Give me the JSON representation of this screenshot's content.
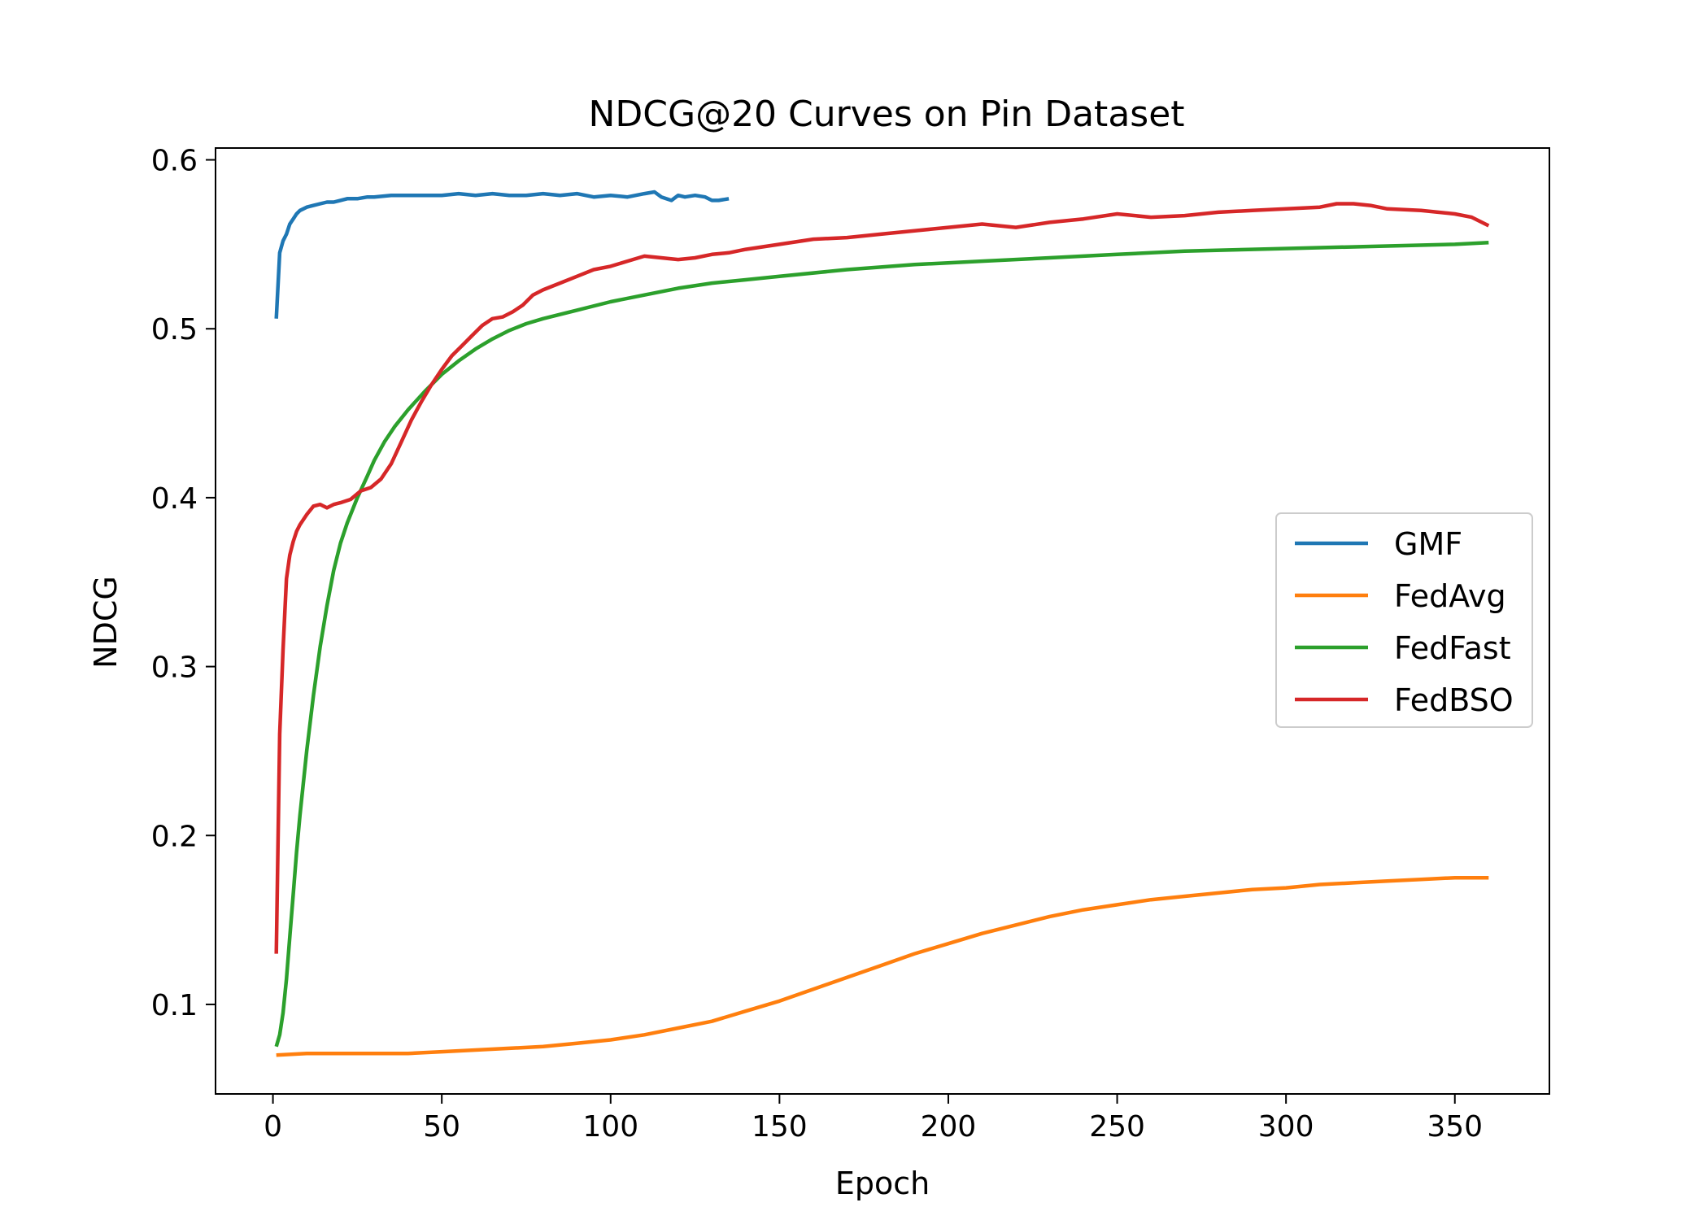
{
  "chart_data": {
    "type": "line",
    "title": "NDCG@20 Curves on Pin Dataset",
    "xlabel": "Epoch",
    "ylabel": "NDCG",
    "xlim": [
      -17,
      378
    ],
    "ylim": [
      0.047,
      0.607
    ],
    "xticks": [
      0,
      50,
      100,
      150,
      200,
      250,
      300,
      350
    ],
    "yticks": [
      0.1,
      0.2,
      0.3,
      0.4,
      0.5,
      0.6
    ],
    "grid": false,
    "legend_position": "center-right",
    "series": [
      {
        "name": "GMF",
        "color": "#1f77b4",
        "x": [
          1,
          2,
          3,
          4,
          5,
          6,
          7,
          8,
          9,
          10,
          12,
          14,
          16,
          18,
          20,
          22,
          25,
          28,
          30,
          35,
          40,
          45,
          50,
          55,
          60,
          65,
          70,
          75,
          80,
          85,
          90,
          95,
          100,
          105,
          110,
          113,
          115,
          118,
          120,
          122,
          125,
          128,
          130,
          132,
          135
        ],
        "y": [
          0.506,
          0.545,
          0.552,
          0.556,
          0.562,
          0.565,
          0.568,
          0.57,
          0.571,
          0.572,
          0.573,
          0.574,
          0.575,
          0.575,
          0.576,
          0.577,
          0.577,
          0.578,
          0.578,
          0.579,
          0.579,
          0.579,
          0.579,
          0.58,
          0.579,
          0.58,
          0.579,
          0.579,
          0.58,
          0.579,
          0.58,
          0.578,
          0.579,
          0.578,
          0.58,
          0.581,
          0.578,
          0.576,
          0.579,
          0.578,
          0.579,
          0.578,
          0.576,
          0.576,
          0.577
        ]
      },
      {
        "name": "FedAvg",
        "color": "#ff7f0e",
        "x": [
          1,
          10,
          20,
          30,
          40,
          50,
          60,
          70,
          80,
          90,
          100,
          110,
          120,
          130,
          140,
          150,
          160,
          170,
          180,
          190,
          200,
          210,
          220,
          230,
          240,
          250,
          260,
          270,
          280,
          290,
          300,
          310,
          320,
          330,
          340,
          350,
          360
        ],
        "y": [
          0.07,
          0.071,
          0.071,
          0.071,
          0.071,
          0.072,
          0.073,
          0.074,
          0.075,
          0.077,
          0.079,
          0.082,
          0.086,
          0.09,
          0.096,
          0.102,
          0.109,
          0.116,
          0.123,
          0.13,
          0.136,
          0.142,
          0.147,
          0.152,
          0.156,
          0.159,
          0.162,
          0.164,
          0.166,
          0.168,
          0.169,
          0.171,
          0.172,
          0.173,
          0.174,
          0.175,
          0.175
        ]
      },
      {
        "name": "FedFast",
        "color": "#2ca02c",
        "x": [
          1,
          2,
          3,
          4,
          5,
          6,
          7,
          8,
          10,
          12,
          14,
          16,
          18,
          20,
          22,
          25,
          28,
          30,
          33,
          36,
          40,
          45,
          50,
          55,
          60,
          65,
          70,
          75,
          80,
          90,
          100,
          110,
          120,
          130,
          140,
          150,
          170,
          190,
          210,
          230,
          250,
          270,
          290,
          310,
          330,
          350,
          360
        ],
        "y": [
          0.075,
          0.082,
          0.095,
          0.115,
          0.14,
          0.165,
          0.19,
          0.212,
          0.25,
          0.283,
          0.312,
          0.336,
          0.357,
          0.373,
          0.385,
          0.4,
          0.413,
          0.422,
          0.433,
          0.442,
          0.452,
          0.463,
          0.473,
          0.481,
          0.488,
          0.494,
          0.499,
          0.503,
          0.506,
          0.511,
          0.516,
          0.52,
          0.524,
          0.527,
          0.529,
          0.531,
          0.535,
          0.538,
          0.54,
          0.542,
          0.544,
          0.546,
          0.547,
          0.548,
          0.549,
          0.55,
          0.551
        ]
      },
      {
        "name": "FedBSO",
        "color": "#d62728",
        "x": [
          1,
          2,
          3,
          4,
          5,
          6,
          7,
          8,
          10,
          12,
          14,
          16,
          18,
          20,
          23,
          26,
          29,
          32,
          35,
          38,
          41,
          44,
          47,
          50,
          53,
          56,
          59,
          62,
          65,
          68,
          71,
          74,
          77,
          80,
          85,
          90,
          95,
          100,
          105,
          110,
          115,
          120,
          125,
          130,
          135,
          140,
          150,
          160,
          170,
          180,
          190,
          200,
          210,
          220,
          230,
          240,
          250,
          260,
          270,
          280,
          290,
          300,
          310,
          315,
          320,
          325,
          330,
          340,
          350,
          355,
          360
        ],
        "y": [
          0.13,
          0.26,
          0.31,
          0.352,
          0.366,
          0.374,
          0.38,
          0.384,
          0.39,
          0.395,
          0.396,
          0.394,
          0.396,
          0.397,
          0.399,
          0.404,
          0.406,
          0.411,
          0.42,
          0.433,
          0.446,
          0.457,
          0.467,
          0.476,
          0.484,
          0.49,
          0.496,
          0.502,
          0.506,
          0.507,
          0.51,
          0.514,
          0.52,
          0.523,
          0.527,
          0.531,
          0.535,
          0.537,
          0.54,
          0.543,
          0.542,
          0.541,
          0.542,
          0.544,
          0.545,
          0.547,
          0.55,
          0.553,
          0.554,
          0.556,
          0.558,
          0.56,
          0.562,
          0.56,
          0.563,
          0.565,
          0.568,
          0.566,
          0.567,
          0.569,
          0.57,
          0.571,
          0.572,
          0.574,
          0.574,
          0.573,
          0.571,
          0.57,
          0.568,
          0.566,
          0.561
        ]
      }
    ]
  }
}
